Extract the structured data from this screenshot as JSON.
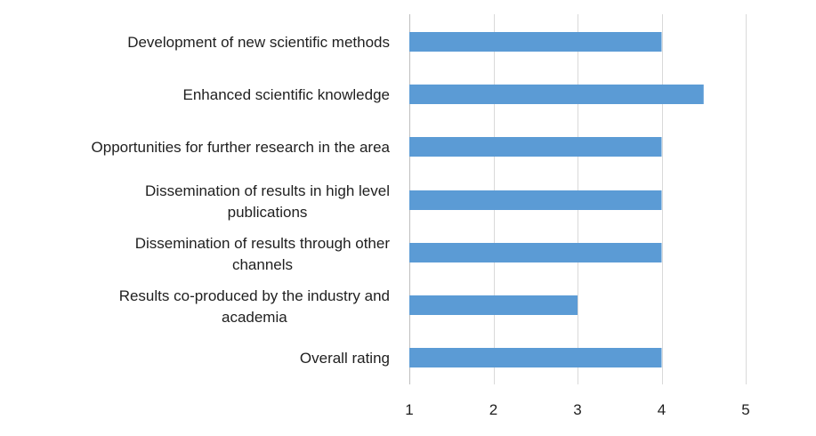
{
  "chart_data": {
    "type": "bar",
    "orientation": "horizontal",
    "categories": [
      "Development of new scientific methods",
      "Enhanced scientific knowledge",
      "Opportunities for further research in the area",
      "Dissemination of results in high level publications",
      "Dissemination of results through other channels",
      "Results co-produced by the industry and academia",
      "Overall rating"
    ],
    "category_lines": [
      [
        "Development of new scientific methods"
      ],
      [
        "Enhanced scientific knowledge"
      ],
      [
        "Opportunities for further research in the area"
      ],
      [
        "Dissemination of results in high level",
        "publications"
      ],
      [
        "Dissemination of results through other",
        "channels"
      ],
      [
        "Results co-produced by the industry and",
        "academia"
      ],
      [
        "Overall rating"
      ]
    ],
    "values": [
      4,
      4.5,
      4,
      4,
      4,
      3,
      4
    ],
    "xlim": [
      1,
      5
    ],
    "xticks": [
      "1",
      "2",
      "3",
      "4",
      "5"
    ],
    "title": "",
    "xlabel": "",
    "ylabel": "",
    "grid": "vertical",
    "legend": "none",
    "bar_color": "#5b9bd5"
  }
}
